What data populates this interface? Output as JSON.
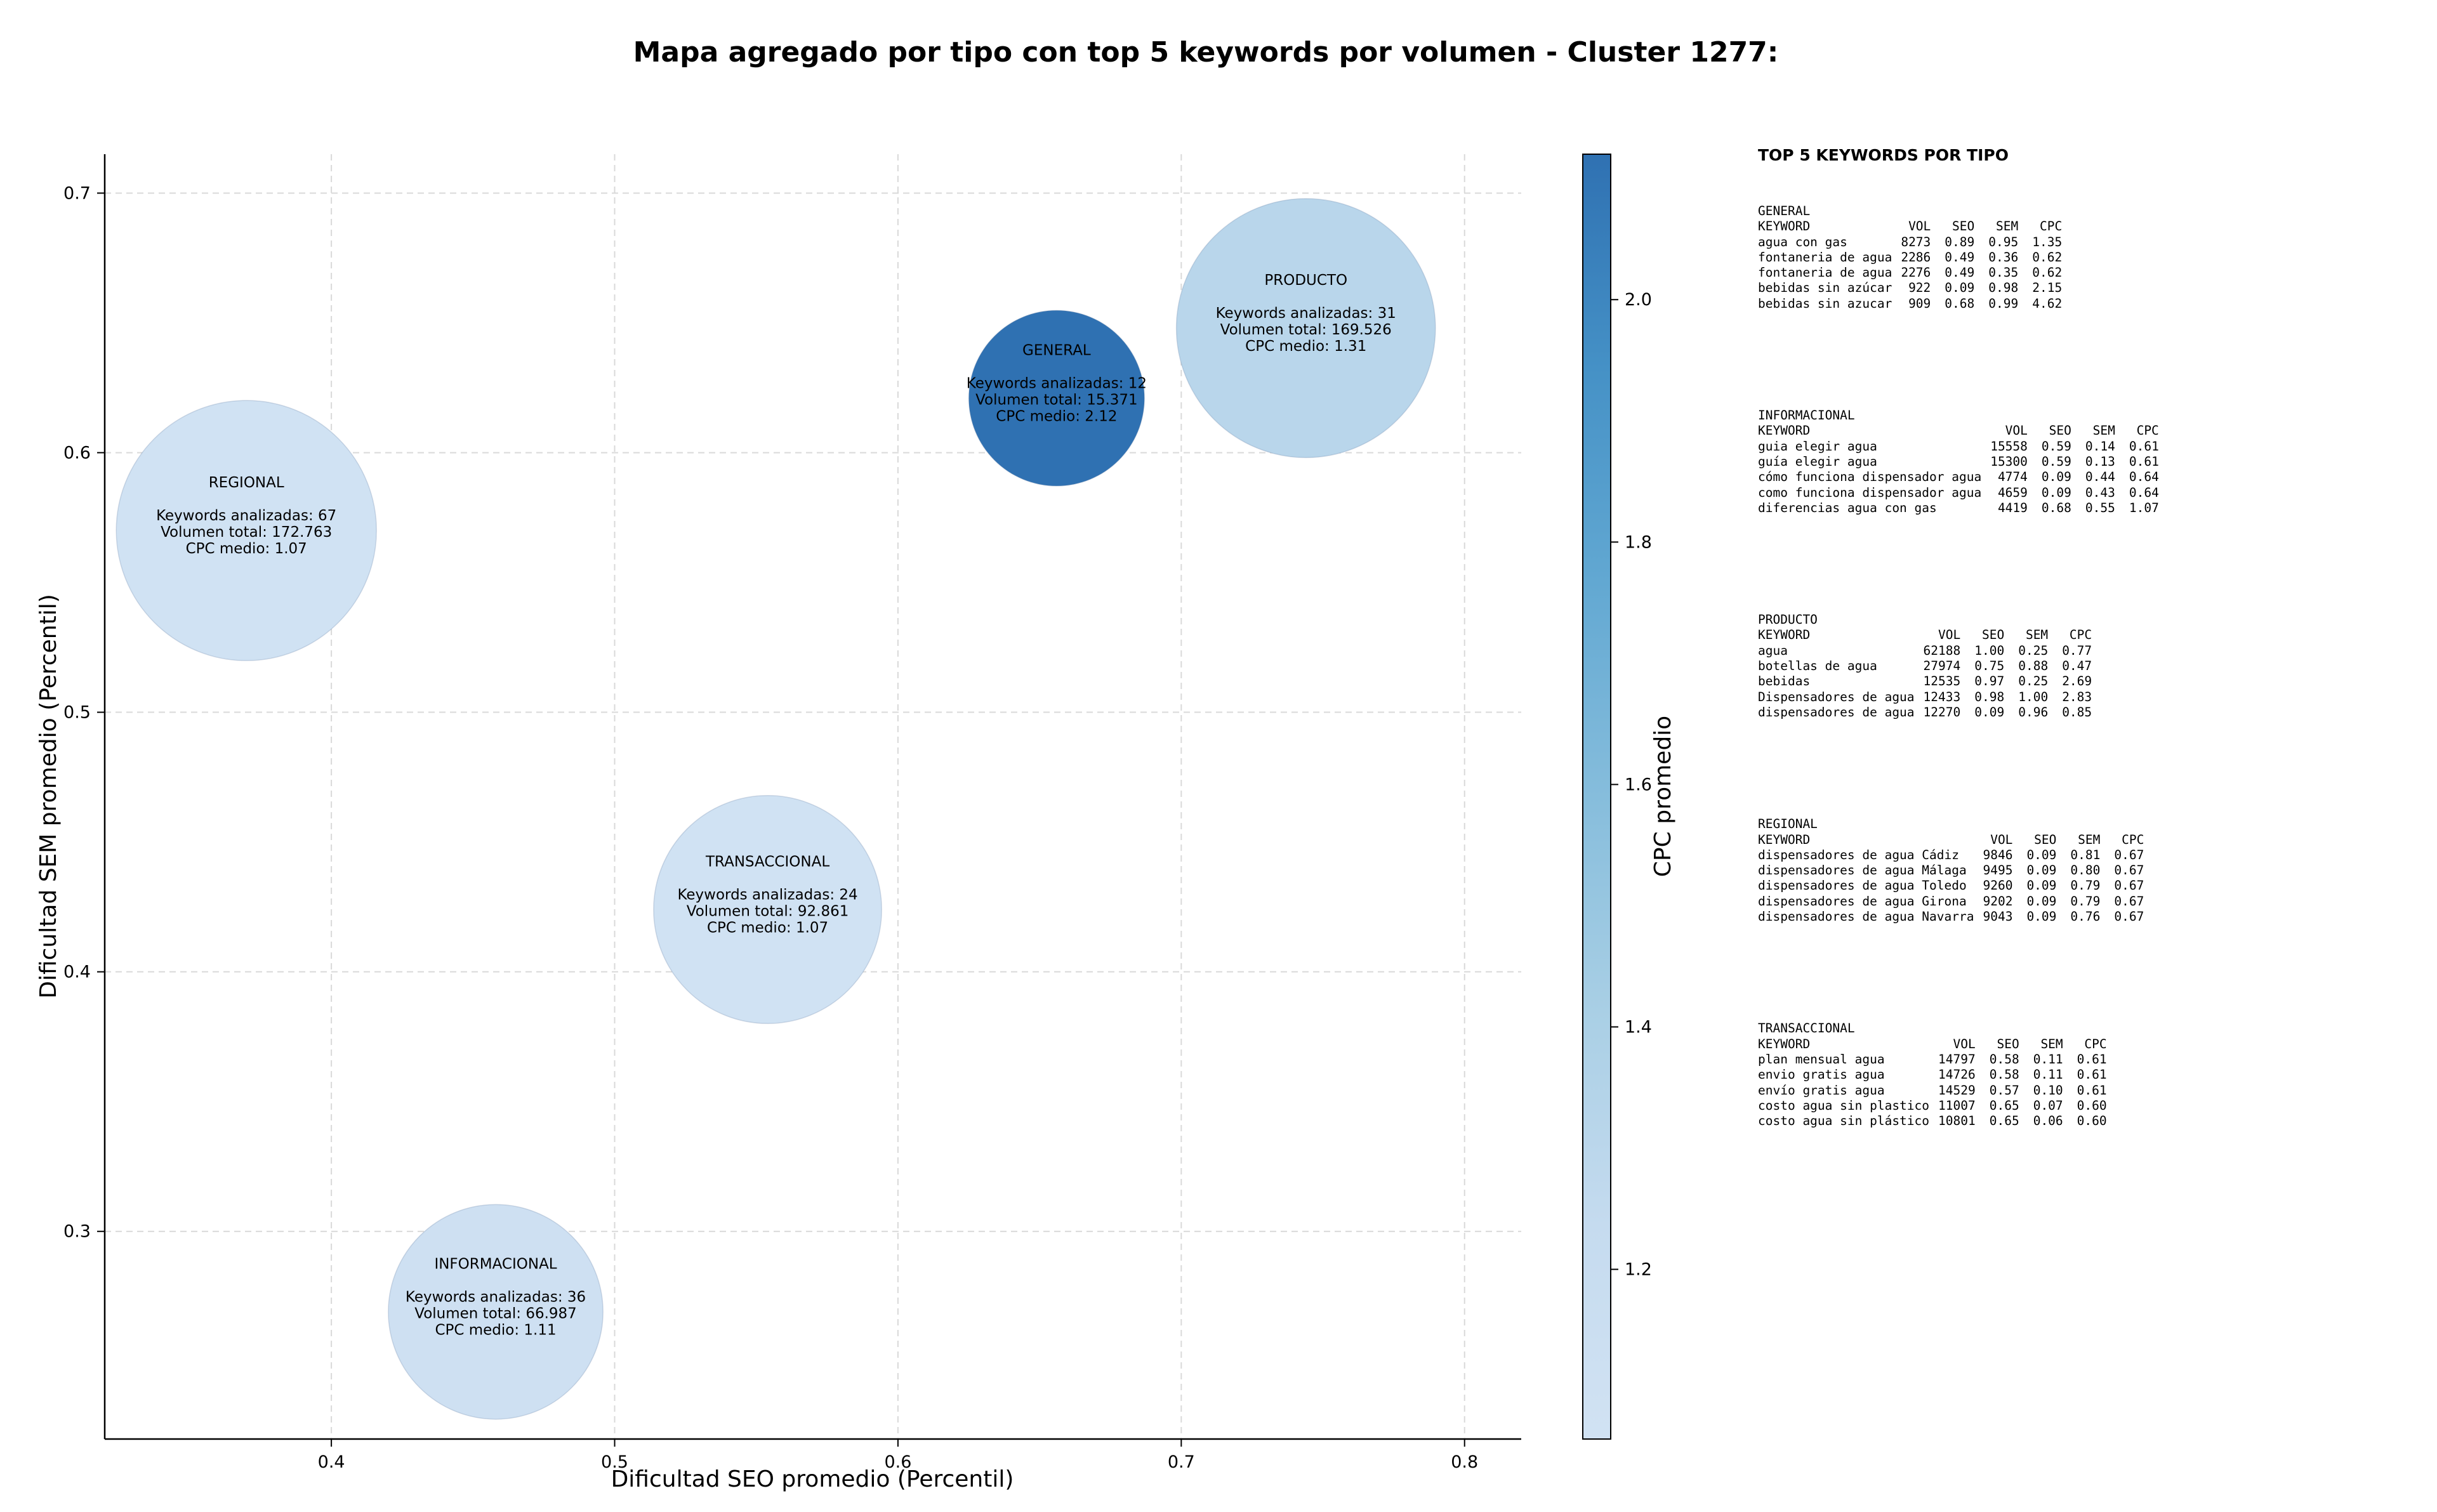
{
  "chart_data": {
    "type": "scatter",
    "title": "Mapa agregado por tipo con top 5 keywords por volumen - Cluster 1277:",
    "xlabel": "Dificultad SEO promedio (Percentil)",
    "ylabel": "Dificultad SEM promedio (Percentil)",
    "colorbar_label": "CPC promedio",
    "xlim": [
      0.32,
      0.82
    ],
    "ylim": [
      0.22,
      0.715
    ],
    "clim": [
      1.06,
      2.12
    ],
    "xticks": [
      0.4,
      0.5,
      0.6,
      0.7,
      0.8
    ],
    "xtick_labels": [
      "0.4",
      "0.5",
      "0.6",
      "0.7",
      "0.8"
    ],
    "yticks": [
      0.3,
      0.4,
      0.5,
      0.6,
      0.7
    ],
    "ytick_labels": [
      "0.3",
      "0.4",
      "0.5",
      "0.6",
      "0.7"
    ],
    "cticks": [
      1.2,
      1.4,
      1.6,
      1.8,
      2.0
    ],
    "ctick_labels": [
      "1.2",
      "1.4",
      "1.6",
      "1.8",
      "2.0"
    ],
    "grid": true,
    "colormap": [
      "#d1e2f3",
      "#c5dbef",
      "#a9cfe5",
      "#86bddc",
      "#62a8d2",
      "#4591c6",
      "#2f71b2"
    ],
    "points": [
      {
        "name": "GENERAL",
        "x": 0.656,
        "y": 0.621,
        "keywords": 12,
        "volume": 15371,
        "cpc": 2.12,
        "lines": [
          "Keywords analizadas: 12",
          "Volumen total: 15.371",
          "CPC medio: 2.12"
        ]
      },
      {
        "name": "PRODUCTO",
        "x": 0.744,
        "y": 0.648,
        "keywords": 31,
        "volume": 169526,
        "cpc": 1.31,
        "lines": [
          "Keywords analizadas: 31",
          "Volumen total: 169.526",
          "CPC medio: 1.31"
        ]
      },
      {
        "name": "REGIONAL",
        "x": 0.37,
        "y": 0.57,
        "keywords": 67,
        "volume": 172763,
        "cpc": 1.07,
        "lines": [
          "Keywords analizadas: 67",
          "Volumen total: 172.763",
          "CPC medio: 1.07"
        ]
      },
      {
        "name": "TRANSACCIONAL",
        "x": 0.554,
        "y": 0.424,
        "keywords": 24,
        "volume": 92861,
        "cpc": 1.07,
        "lines": [
          "Keywords analizadas: 24",
          "Volumen total: 92.861",
          "CPC medio: 1.07"
        ]
      },
      {
        "name": "INFORMACIONAL",
        "x": 0.458,
        "y": 0.269,
        "keywords": 36,
        "volume": 66987,
        "cpc": 1.11,
        "lines": [
          "Keywords analizadas: 36",
          "Volumen total: 66.987",
          "CPC medio: 1.11"
        ]
      }
    ]
  },
  "side_panel": {
    "title": "TOP 5 KEYWORDS POR TIPO",
    "header": {
      "keyword": "KEYWORD",
      "vol": "VOL",
      "seo": "SEO",
      "sem": "SEM",
      "cpc": "CPC"
    },
    "groups": [
      {
        "name": "GENERAL",
        "rows": [
          [
            "agua con gas",
            "8273",
            "0.89",
            "0.95",
            "1.35"
          ],
          [
            "fontaneria de agua",
            "2286",
            "0.49",
            "0.36",
            "0.62"
          ],
          [
            "fontaneria de agua",
            "2276",
            "0.49",
            "0.35",
            "0.62"
          ],
          [
            "bebidas sin azúcar",
            "922",
            "0.09",
            "0.98",
            "2.15"
          ],
          [
            "bebidas sin azucar",
            "909",
            "0.68",
            "0.99",
            "4.62"
          ]
        ]
      },
      {
        "name": "INFORMACIONAL",
        "rows": [
          [
            "guia elegir agua",
            "15558",
            "0.59",
            "0.14",
            "0.61"
          ],
          [
            "guía elegir agua",
            "15300",
            "0.59",
            "0.13",
            "0.61"
          ],
          [
            "cómo funciona dispensador agua",
            "4774",
            "0.09",
            "0.44",
            "0.64"
          ],
          [
            "como funciona dispensador agua",
            "4659",
            "0.09",
            "0.43",
            "0.64"
          ],
          [
            "diferencias agua con gas",
            "4419",
            "0.68",
            "0.55",
            "1.07"
          ]
        ]
      },
      {
        "name": "PRODUCTO",
        "rows": [
          [
            "agua",
            "62188",
            "1.00",
            "0.25",
            "0.77"
          ],
          [
            "botellas de agua",
            "27974",
            "0.75",
            "0.88",
            "0.47"
          ],
          [
            "bebidas",
            "12535",
            "0.97",
            "0.25",
            "2.69"
          ],
          [
            "Dispensadores de agua",
            "12433",
            "0.98",
            "1.00",
            "2.83"
          ],
          [
            "dispensadores de agua",
            "12270",
            "0.09",
            "0.96",
            "0.85"
          ]
        ]
      },
      {
        "name": "REGIONAL",
        "rows": [
          [
            "dispensadores de agua Cádiz",
            "9846",
            "0.09",
            "0.81",
            "0.67"
          ],
          [
            "dispensadores de agua Málaga",
            "9495",
            "0.09",
            "0.80",
            "0.67"
          ],
          [
            "dispensadores de agua Toledo",
            "9260",
            "0.09",
            "0.79",
            "0.67"
          ],
          [
            "dispensadores de agua Girona",
            "9202",
            "0.09",
            "0.79",
            "0.67"
          ],
          [
            "dispensadores de agua Navarra",
            "9043",
            "0.09",
            "0.76",
            "0.67"
          ]
        ]
      },
      {
        "name": "TRANSACCIONAL",
        "rows": [
          [
            "plan mensual agua",
            "14797",
            "0.58",
            "0.11",
            "0.61"
          ],
          [
            "envio gratis agua",
            "14726",
            "0.58",
            "0.11",
            "0.61"
          ],
          [
            "envío gratis agua",
            "14529",
            "0.57",
            "0.10",
            "0.61"
          ],
          [
            "costo agua sin plastico",
            "11007",
            "0.65",
            "0.07",
            "0.60"
          ],
          [
            "costo agua sin plástico",
            "10801",
            "0.65",
            "0.06",
            "0.60"
          ]
        ]
      }
    ]
  }
}
